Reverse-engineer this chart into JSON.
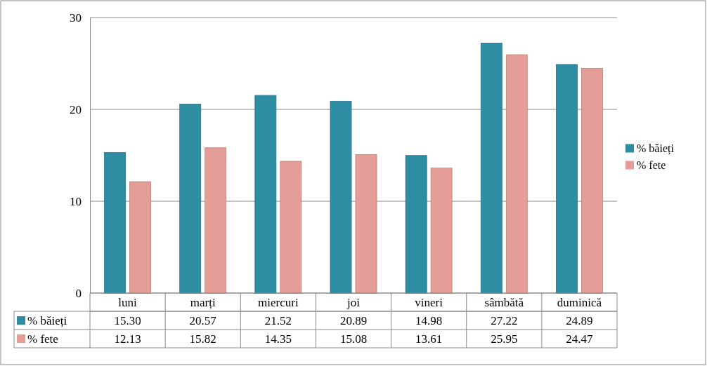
{
  "chart_data": {
    "type": "bar",
    "categories": [
      "luni",
      "marți",
      "miercuri",
      "joi",
      "vineri",
      "sâmbătă",
      "duminică"
    ],
    "series": [
      {
        "name": "% băieți",
        "color": "#2e8ca3",
        "values": [
          15.3,
          20.57,
          21.52,
          20.89,
          14.98,
          27.22,
          24.89
        ],
        "value_labels": [
          "15.30",
          "20.57",
          "21.52",
          "20.89",
          "14.98",
          "27.22",
          "24.89"
        ]
      },
      {
        "name": "% fete",
        "color": "#e59d98",
        "values": [
          12.13,
          15.82,
          14.35,
          15.08,
          13.61,
          25.95,
          24.47
        ],
        "value_labels": [
          "12.13",
          "15.82",
          "14.35",
          "15.08",
          "13.61",
          "25.95",
          "24.47"
        ]
      }
    ],
    "ylim": [
      0,
      30
    ],
    "yticks": [
      0,
      10,
      20,
      30
    ],
    "grid": "y",
    "legend": "right"
  }
}
